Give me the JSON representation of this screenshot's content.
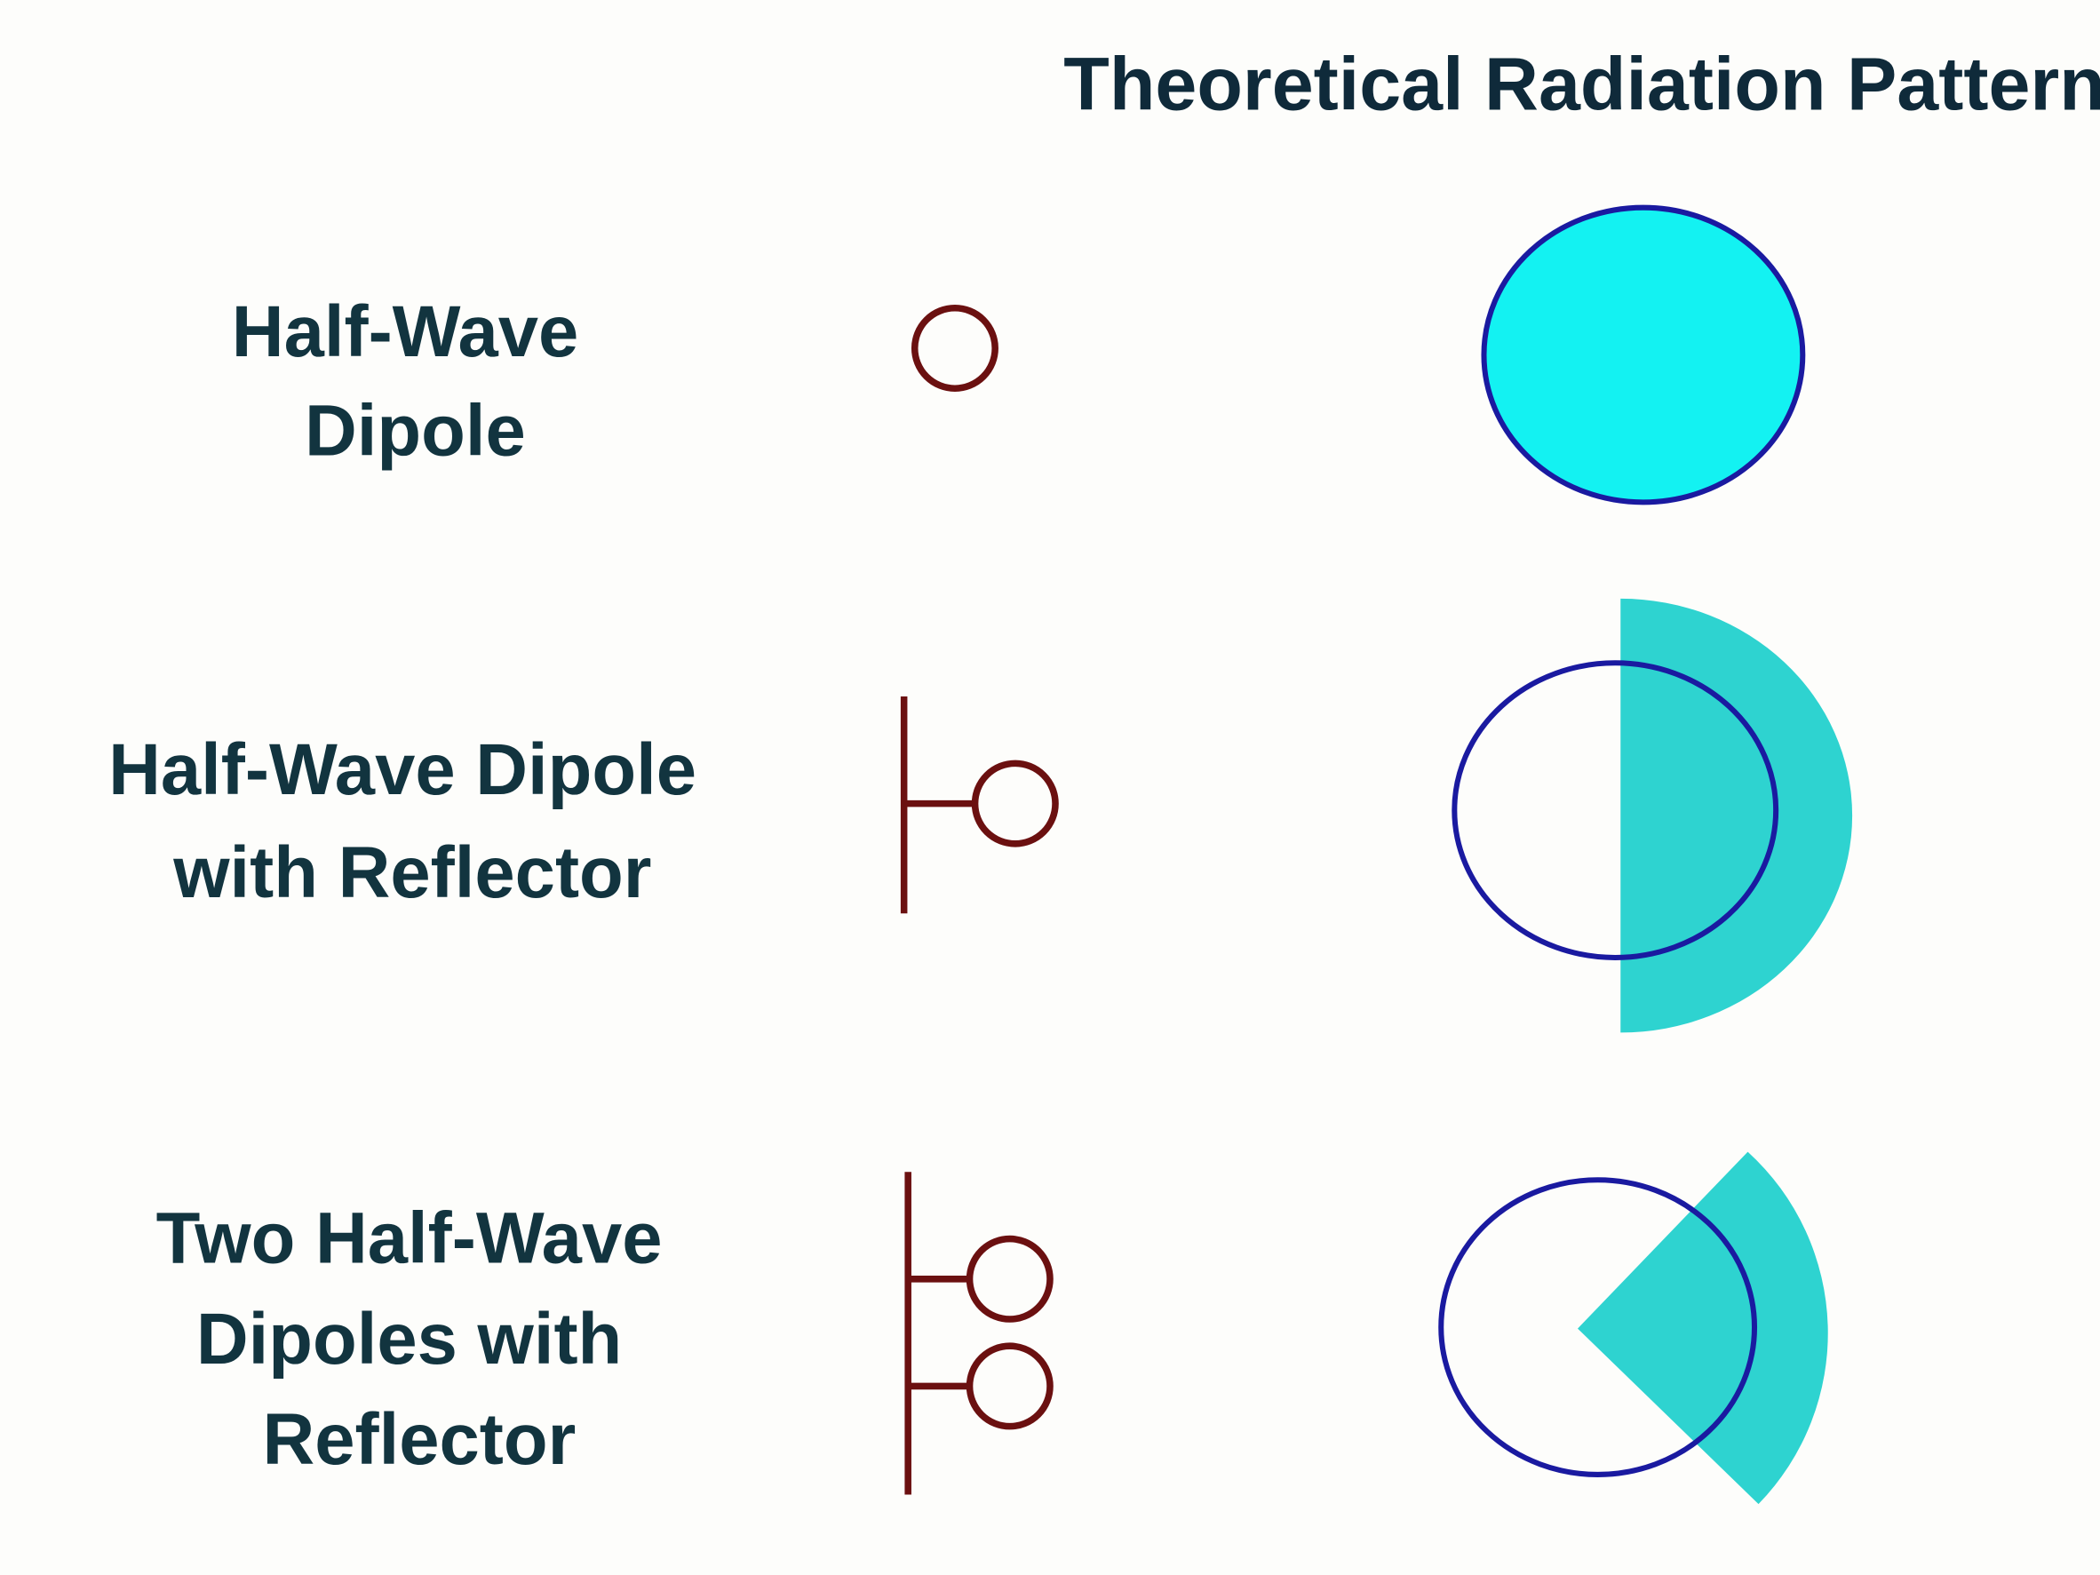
{
  "title": "Theoretical Radiation Pattern",
  "rows": [
    {
      "label": [
        "Half-Wave",
        "Dipole"
      ]
    },
    {
      "label": [
        "Half-Wave Dipole",
        "with Reflector"
      ]
    },
    {
      "label": [
        "Two Half-Wave",
        "Dipoles with",
        "Reflector"
      ]
    }
  ]
}
